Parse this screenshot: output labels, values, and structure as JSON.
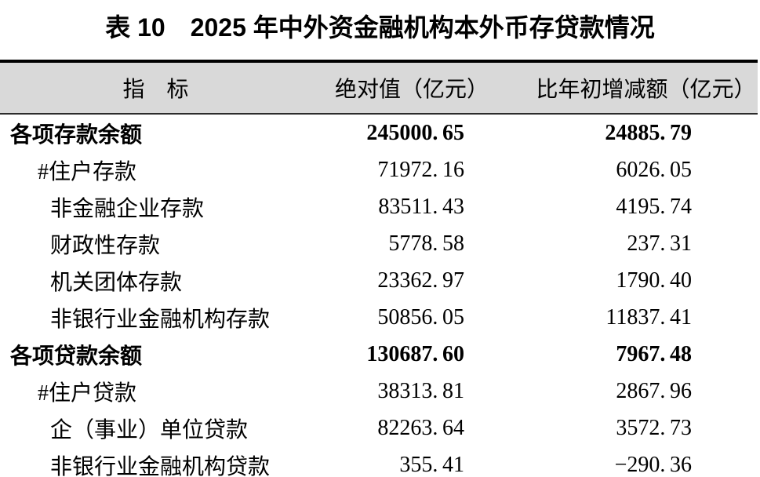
{
  "title": "表 10　2025 年中外资金融机构本外币存贷款情况",
  "table": {
    "header": {
      "indicator": "指　标",
      "absolute": "绝对值（亿元）",
      "change": "比年初增减额（亿元）"
    },
    "rows": [
      {
        "indicator": "各项存款余额",
        "absolute": "245000.65",
        "change": "24885.79"
      },
      {
        "indicator": "#住户存款",
        "absolute": "71972.16",
        "change": "6026.05"
      },
      {
        "indicator": "非金融企业存款",
        "absolute": "83511.43",
        "change": "4195.74"
      },
      {
        "indicator": "财政性存款",
        "absolute": "5778.58",
        "change": "237.31"
      },
      {
        "indicator": "机关团体存款",
        "absolute": "23362.97",
        "change": "1790.40"
      },
      {
        "indicator": "非银行业金融机构存款",
        "absolute": "50856.05",
        "change": "11837.41"
      },
      {
        "indicator": "各项贷款余额",
        "absolute": "130687.60",
        "change": "7967.48"
      },
      {
        "indicator": "#住户贷款",
        "absolute": "38313.81",
        "change": "2867.96"
      },
      {
        "indicator": "企（事业）单位贷款",
        "absolute": "82263.64",
        "change": "3572.73"
      },
      {
        "indicator": "非银行业金融机构贷款",
        "absolute": "355.41",
        "change": "-290.36"
      }
    ],
    "colors": {
      "header_bg": "#d9d9d9",
      "border": "#000000",
      "text": "#000000"
    }
  }
}
